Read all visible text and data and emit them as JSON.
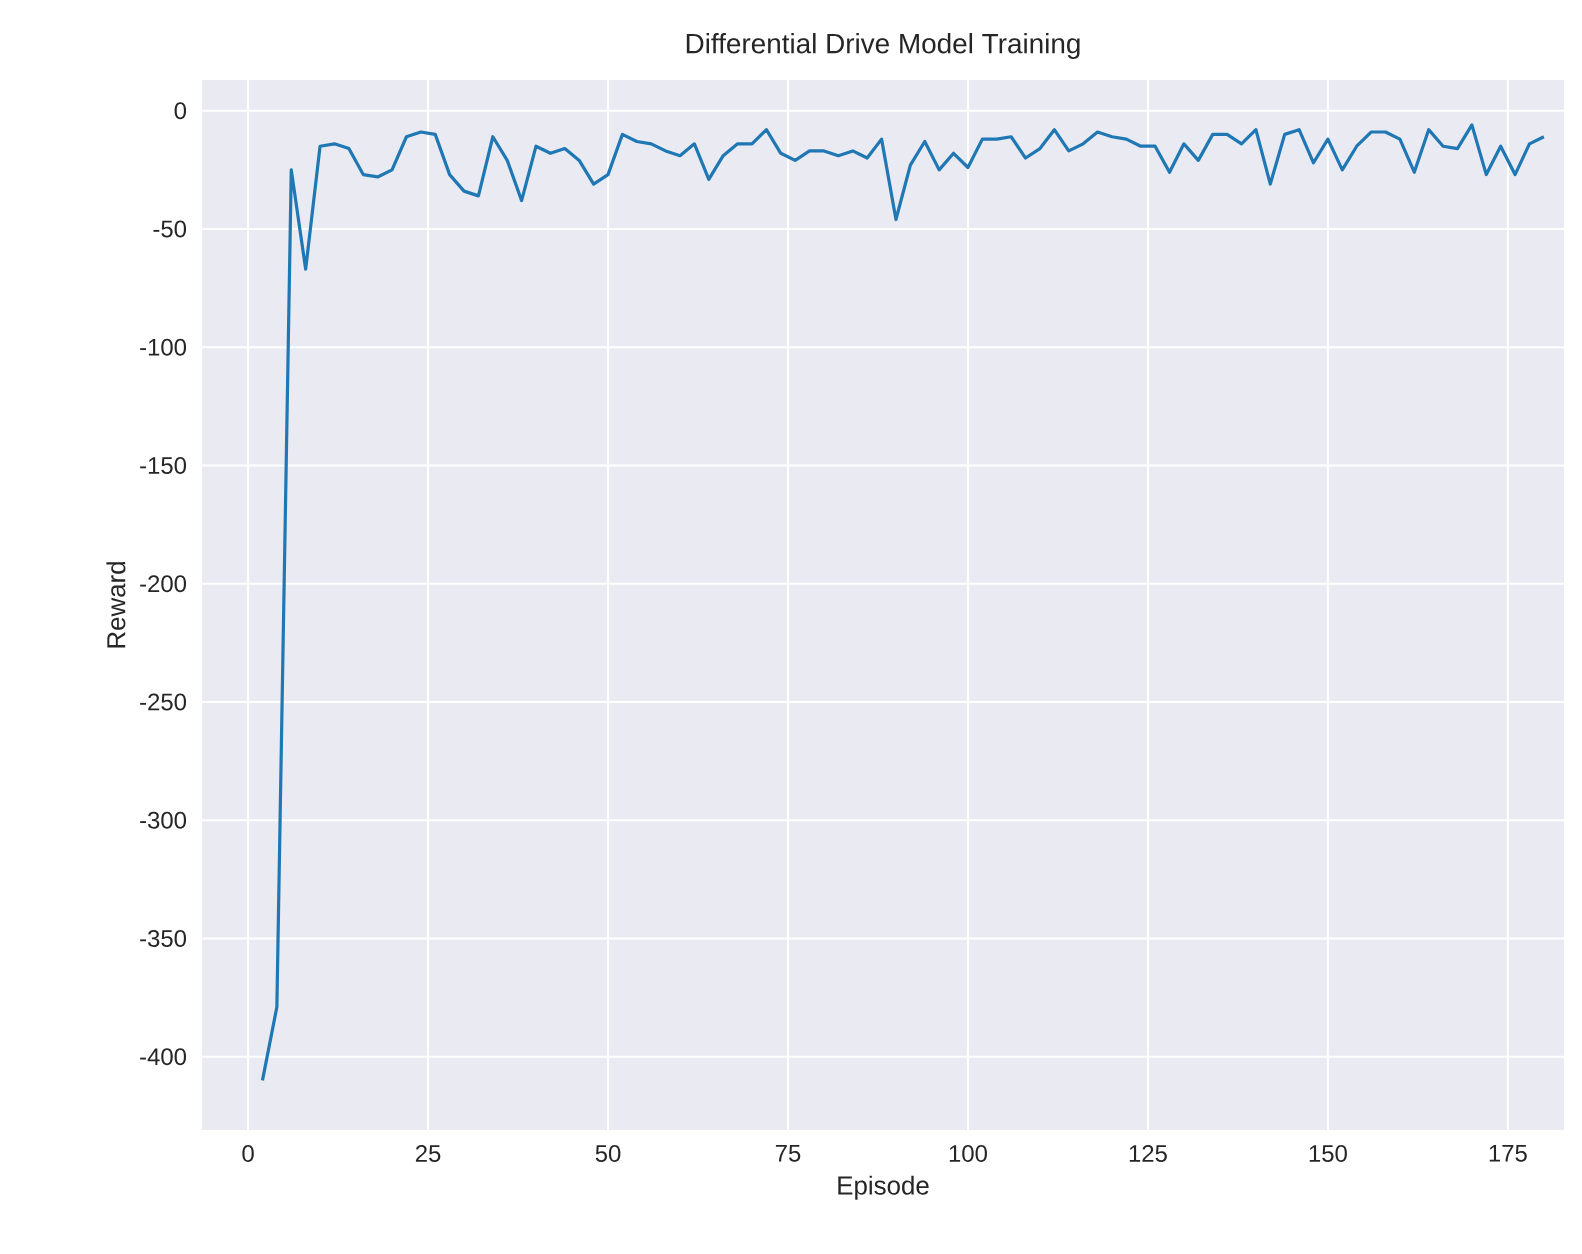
{
  "chart_data": {
    "type": "line",
    "title": "Differential Drive Model Training",
    "xlabel": "Episode",
    "ylabel": "Reward",
    "x": [
      2,
      4,
      6,
      8,
      10,
      12,
      14,
      16,
      18,
      20,
      22,
      24,
      26,
      28,
      30,
      32,
      34,
      36,
      38,
      40,
      42,
      44,
      46,
      48,
      50,
      52,
      54,
      56,
      58,
      60,
      62,
      64,
      66,
      68,
      70,
      72,
      74,
      76,
      78,
      80,
      82,
      84,
      86,
      88,
      90,
      92,
      94,
      96,
      98,
      100,
      102,
      104,
      106,
      108,
      110,
      112,
      114,
      116,
      118,
      120,
      122,
      124,
      126,
      128,
      130,
      132,
      134,
      136,
      138,
      140,
      142,
      144,
      146,
      148,
      150,
      152,
      154,
      156,
      158,
      160,
      162,
      164,
      166,
      168,
      170,
      172,
      174,
      176,
      178,
      180
    ],
    "values": [
      -410,
      -379,
      -25,
      -67,
      -15,
      -14,
      -16,
      -27,
      -28,
      -25,
      -11,
      -9,
      -10,
      -27,
      -34,
      -36,
      -11,
      -21,
      -38,
      -15,
      -18,
      -16,
      -21,
      -31,
      -27,
      -10,
      -13,
      -14,
      -17,
      -19,
      -14,
      -29,
      -19,
      -14,
      -14,
      -8,
      -18,
      -21,
      -17,
      -17,
      -19,
      -17,
      -20,
      -12,
      -46,
      -23,
      -13,
      -25,
      -18,
      -24,
      -12,
      -12,
      -11,
      -20,
      -16,
      -8,
      -17,
      -14,
      -9,
      -11,
      -12,
      -15,
      -15,
      -26,
      -14,
      -21,
      -10,
      -10,
      -14,
      -8,
      -31,
      -10,
      -8,
      -22,
      -12,
      -25,
      -15,
      -9,
      -9,
      -12,
      -26,
      -8,
      -15,
      -16,
      -6,
      -27,
      -15,
      -27,
      -14,
      -11
    ],
    "color": "#1f77b4",
    "xlim": [
      -6.4,
      182.8
    ],
    "ylim": [
      -431,
      13
    ],
    "xticks": [
      0,
      25,
      50,
      75,
      100,
      125,
      150,
      175
    ],
    "yticks": [
      0,
      -50,
      -100,
      -150,
      -200,
      -250,
      -300,
      -350,
      -400
    ],
    "grid": true
  }
}
